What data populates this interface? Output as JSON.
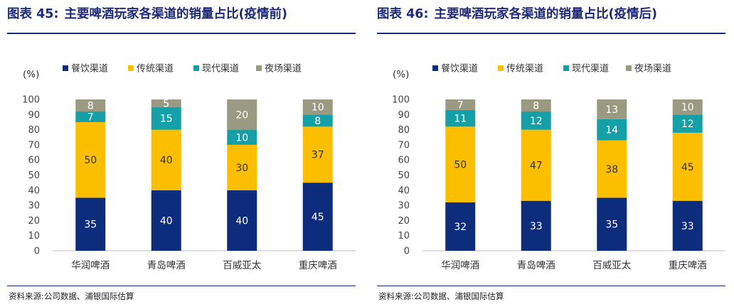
{
  "panels": [
    {
      "figure_label": "图表 45:",
      "figure_title": "主要啤酒玩家各渠道的销量占比(疫情前)",
      "source": "资料来源:公司数据、浦银国际估算"
    },
    {
      "figure_label": "图表 46:",
      "figure_title": "主要啤酒玩家各渠道的销量占比(疫情后)",
      "source": "资料来源:公司数据、浦银国际估算"
    }
  ],
  "chart_data": [
    {
      "type": "bar",
      "stacked": true,
      "unit_label": "(%)",
      "categories": [
        "华润啤酒",
        "青岛啤酒",
        "百威亚太",
        "重庆啤酒"
      ],
      "series": [
        {
          "name": "餐饮渠道",
          "color": "#0d2c7c",
          "label_color": "#ffffff",
          "values": [
            35,
            40,
            40,
            45
          ]
        },
        {
          "name": "传统渠道",
          "color": "#fbbf00",
          "label_color": "#333333",
          "values": [
            50,
            40,
            30,
            37
          ]
        },
        {
          "name": "现代渠道",
          "color": "#14a0a6",
          "label_color": "#ffffff",
          "values": [
            7,
            15,
            10,
            8
          ]
        },
        {
          "name": "夜场渠道",
          "color": "#9a9a82",
          "label_color": "#ffffff",
          "values": [
            8,
            5,
            20,
            10
          ]
        }
      ],
      "ylim": [
        0,
        100
      ],
      "yticks": [
        0,
        10,
        20,
        30,
        40,
        50,
        60,
        70,
        80,
        90,
        100
      ],
      "legend_position": "top",
      "grid": false
    },
    {
      "type": "bar",
      "stacked": true,
      "unit_label": "(%)",
      "categories": [
        "华润啤酒",
        "青岛啤酒",
        "百威亚太",
        "重庆啤酒"
      ],
      "series": [
        {
          "name": "餐饮渠道",
          "color": "#0d2c7c",
          "label_color": "#ffffff",
          "values": [
            32,
            33,
            35,
            33
          ]
        },
        {
          "name": "传统渠道",
          "color": "#fbbf00",
          "label_color": "#333333",
          "values": [
            50,
            47,
            38,
            45
          ]
        },
        {
          "name": "现代渠道",
          "color": "#14a0a6",
          "label_color": "#ffffff",
          "values": [
            11,
            12,
            14,
            12
          ]
        },
        {
          "name": "夜场渠道",
          "color": "#9a9a82",
          "label_color": "#ffffff",
          "values": [
            7,
            8,
            13,
            10
          ]
        }
      ],
      "ylim": [
        0,
        100
      ],
      "yticks": [
        0,
        10,
        20,
        30,
        40,
        50,
        60,
        70,
        80,
        90,
        100
      ],
      "legend_position": "top",
      "grid": false
    }
  ]
}
